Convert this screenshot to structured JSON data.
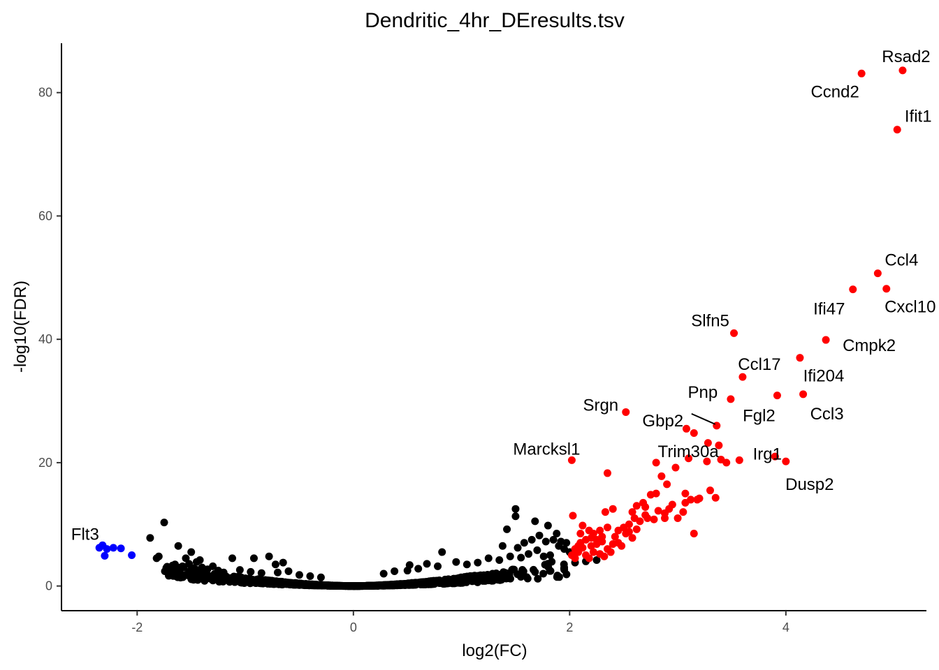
{
  "chart_data": {
    "type": "scatter",
    "title": "Dendritic_4hr_DEresults.tsv",
    "xlabel": "log2(FC)",
    "ylabel": "-log10(FDR)",
    "xlim": [
      -2.7,
      5.3
    ],
    "ylim": [
      -4,
      88
    ],
    "xticks": [
      -2,
      0,
      2,
      4
    ],
    "yticks": [
      0,
      20,
      40,
      60,
      80
    ],
    "grid": false,
    "colors": {
      "up": "#ff0000",
      "down": "#0000ff",
      "ns": "#000000"
    },
    "labeled_genes": [
      {
        "gene": "Rsad2",
        "x": 5.08,
        "y": 83.6
      },
      {
        "gene": "Ccnd2",
        "x": 4.7,
        "y": 83.1
      },
      {
        "gene": "Ifit1",
        "x": 5.03,
        "y": 74.0
      },
      {
        "gene": "Ccl4",
        "x": 4.85,
        "y": 50.7
      },
      {
        "gene": "Cxcl10",
        "x": 4.93,
        "y": 48.2
      },
      {
        "gene": "Ifi47",
        "x": 4.62,
        "y": 48.1
      },
      {
        "gene": "Slfn5",
        "x": 3.52,
        "y": 41.0
      },
      {
        "gene": "Cmpk2",
        "x": 4.37,
        "y": 39.9
      },
      {
        "gene": "Ifi204",
        "x": 4.13,
        "y": 37.0
      },
      {
        "gene": "Ccl17",
        "x": 3.6,
        "y": 33.9
      },
      {
        "gene": "Ccl3",
        "x": 4.16,
        "y": 31.1
      },
      {
        "gene": "Fgl2",
        "x": 3.92,
        "y": 30.9
      },
      {
        "gene": "Pnp",
        "x": 3.49,
        "y": 30.3
      },
      {
        "gene": "Srgn",
        "x": 2.52,
        "y": 28.2
      },
      {
        "gene": "Gbp2",
        "x": 3.36,
        "y": 26.0
      },
      {
        "gene": "Irg1",
        "x": 3.57,
        "y": 20.4
      },
      {
        "gene": "Marcksl1",
        "x": 2.02,
        "y": 20.4
      },
      {
        "gene": "Trim30a",
        "x": 2.8,
        "y": 20.0
      },
      {
        "gene": "Dusp2",
        "x": 4.0,
        "y": 20.2
      },
      {
        "gene": "Flt3",
        "x": -2.32,
        "y": 6.6
      }
    ],
    "up_points": [
      [
        3.9,
        21.0
      ],
      [
        3.4,
        20.5
      ],
      [
        3.45,
        20.0
      ],
      [
        3.27,
        20.2
      ],
      [
        3.1,
        20.7
      ],
      [
        3.2,
        14.2
      ],
      [
        3.3,
        15.5
      ],
      [
        3.35,
        14.3
      ],
      [
        3.07,
        15.0
      ],
      [
        3.15,
        8.5
      ],
      [
        3.07,
        13.5
      ],
      [
        2.98,
        19.2
      ],
      [
        2.9,
        16.5
      ],
      [
        2.85,
        17.8
      ],
      [
        2.8,
        15.0
      ],
      [
        2.75,
        14.8
      ],
      [
        2.7,
        12.8
      ],
      [
        2.62,
        13.0
      ],
      [
        2.6,
        11.0
      ],
      [
        2.55,
        10.0
      ],
      [
        2.52,
        8.5
      ],
      [
        2.5,
        9.5
      ],
      [
        2.45,
        9.0
      ],
      [
        2.4,
        12.5
      ],
      [
        2.35,
        18.3
      ],
      [
        2.35,
        9.5
      ],
      [
        2.33,
        12.0
      ],
      [
        2.3,
        8.0
      ],
      [
        2.28,
        9.0
      ],
      [
        2.25,
        7.5
      ],
      [
        2.22,
        8.5
      ],
      [
        2.2,
        6.5
      ],
      [
        2.18,
        9.0
      ],
      [
        2.15,
        7.5
      ],
      [
        2.12,
        9.8
      ],
      [
        2.1,
        7.0
      ],
      [
        2.08,
        6.5
      ],
      [
        2.05,
        6.0
      ],
      [
        2.03,
        11.4
      ],
      [
        2.02,
        5.0
      ],
      [
        2.05,
        4.5
      ],
      [
        2.08,
        5.5
      ],
      [
        2.1,
        8.5
      ],
      [
        2.12,
        6.2
      ],
      [
        2.15,
        5.0
      ],
      [
        2.18,
        4.5
      ],
      [
        2.2,
        7.8
      ],
      [
        2.22,
        5.5
      ],
      [
        2.25,
        6.8
      ],
      [
        2.28,
        5.2
      ],
      [
        2.3,
        7.2
      ],
      [
        2.32,
        4.8
      ],
      [
        2.35,
        6.0
      ],
      [
        2.38,
        5.5
      ],
      [
        2.4,
        6.8
      ],
      [
        2.42,
        8.0
      ],
      [
        2.45,
        7.0
      ],
      [
        2.48,
        6.5
      ],
      [
        2.55,
        8.8
      ],
      [
        2.58,
        7.8
      ],
      [
        2.62,
        9.2
      ],
      [
        2.65,
        10.5
      ],
      [
        2.7,
        11.5
      ],
      [
        2.78,
        10.8
      ],
      [
        2.82,
        12.2
      ],
      [
        2.88,
        11.8
      ],
      [
        2.92,
        12.5
      ],
      [
        2.95,
        13.2
      ],
      [
        3.0,
        11.0
      ],
      [
        3.05,
        12.0
      ],
      [
        3.12,
        14.0
      ],
      [
        3.18,
        14.0
      ],
      [
        3.08,
        25.5
      ],
      [
        3.15,
        24.8
      ],
      [
        3.28,
        23.2
      ],
      [
        3.38,
        22.8
      ],
      [
        2.88,
        11.0
      ],
      [
        2.72,
        11.0
      ],
      [
        2.68,
        13.5
      ],
      [
        2.58,
        12.0
      ]
    ],
    "down_points": [
      [
        -2.35,
        6.2
      ],
      [
        -2.32,
        6.6
      ],
      [
        -2.28,
        6.0
      ],
      [
        -2.22,
        6.2
      ],
      [
        -2.3,
        4.9
      ],
      [
        -2.15,
        6.1
      ],
      [
        -2.05,
        5.0
      ]
    ],
    "ns_params": {
      "count": 1600,
      "seed": 7
    },
    "ns_points": [
      [
        1.5,
        12.5
      ],
      [
        1.5,
        11.3
      ],
      [
        1.42,
        9.2
      ],
      [
        1.68,
        10.5
      ],
      [
        1.8,
        9.8
      ],
      [
        1.38,
        6.5
      ],
      [
        1.58,
        7.0
      ],
      [
        1.52,
        6.2
      ],
      [
        1.65,
        7.5
      ],
      [
        1.72,
        8.2
      ],
      [
        1.85,
        7.5
      ],
      [
        1.9,
        6.5
      ],
      [
        1.95,
        6.0
      ],
      [
        2.0,
        5.5
      ],
      [
        1.82,
        5.0
      ],
      [
        1.78,
        7.2
      ],
      [
        1.88,
        8.5
      ],
      [
        1.92,
        7.2
      ],
      [
        1.97,
        7.0
      ],
      [
        1.76,
        4.8
      ],
      [
        1.7,
        5.8
      ],
      [
        1.62,
        5.2
      ],
      [
        1.55,
        4.6
      ],
      [
        1.45,
        4.8
      ],
      [
        1.35,
        4.2
      ],
      [
        1.25,
        4.5
      ],
      [
        1.15,
        3.8
      ],
      [
        1.05,
        3.5
      ],
      [
        0.95,
        3.9
      ],
      [
        0.82,
        5.5
      ],
      [
        0.78,
        3.2
      ],
      [
        0.68,
        3.6
      ],
      [
        0.6,
        2.8
      ],
      [
        0.52,
        3.4
      ],
      [
        0.5,
        2.5
      ],
      [
        0.38,
        2.4
      ],
      [
        0.28,
        2.0
      ],
      [
        2.05,
        3.8
      ],
      [
        2.15,
        4.0
      ],
      [
        2.25,
        4.2
      ],
      [
        -1.75,
        10.3
      ],
      [
        -1.88,
        7.8
      ],
      [
        -1.62,
        6.5
      ],
      [
        -1.5,
        5.5
      ],
      [
        -1.55,
        4.5
      ],
      [
        -1.45,
        3.9
      ],
      [
        -1.65,
        3.5
      ],
      [
        -1.8,
        4.8
      ],
      [
        -1.82,
        4.5
      ],
      [
        -1.7,
        2.8
      ],
      [
        -1.58,
        3.2
      ],
      [
        -1.4,
        3.0
      ],
      [
        -1.35,
        2.7
      ],
      [
        -1.25,
        2.5
      ],
      [
        -1.12,
        4.5
      ],
      [
        -1.2,
        2.2
      ],
      [
        -0.92,
        4.5
      ],
      [
        -1.05,
        2.6
      ],
      [
        -0.78,
        4.8
      ],
      [
        -0.72,
        3.5
      ],
      [
        -0.65,
        3.8
      ],
      [
        -0.95,
        2.3
      ],
      [
        -0.85,
        2.1
      ],
      [
        -0.7,
        2.2
      ],
      [
        -0.6,
        2.4
      ],
      [
        -0.5,
        1.8
      ],
      [
        -0.4,
        1.6
      ],
      [
        -0.3,
        1.4
      ],
      [
        -1.3,
        3.2
      ],
      [
        -1.48,
        2.9
      ],
      [
        -1.52,
        3.6
      ],
      [
        -1.6,
        3.0
      ],
      [
        -1.42,
        4.2
      ]
    ]
  }
}
